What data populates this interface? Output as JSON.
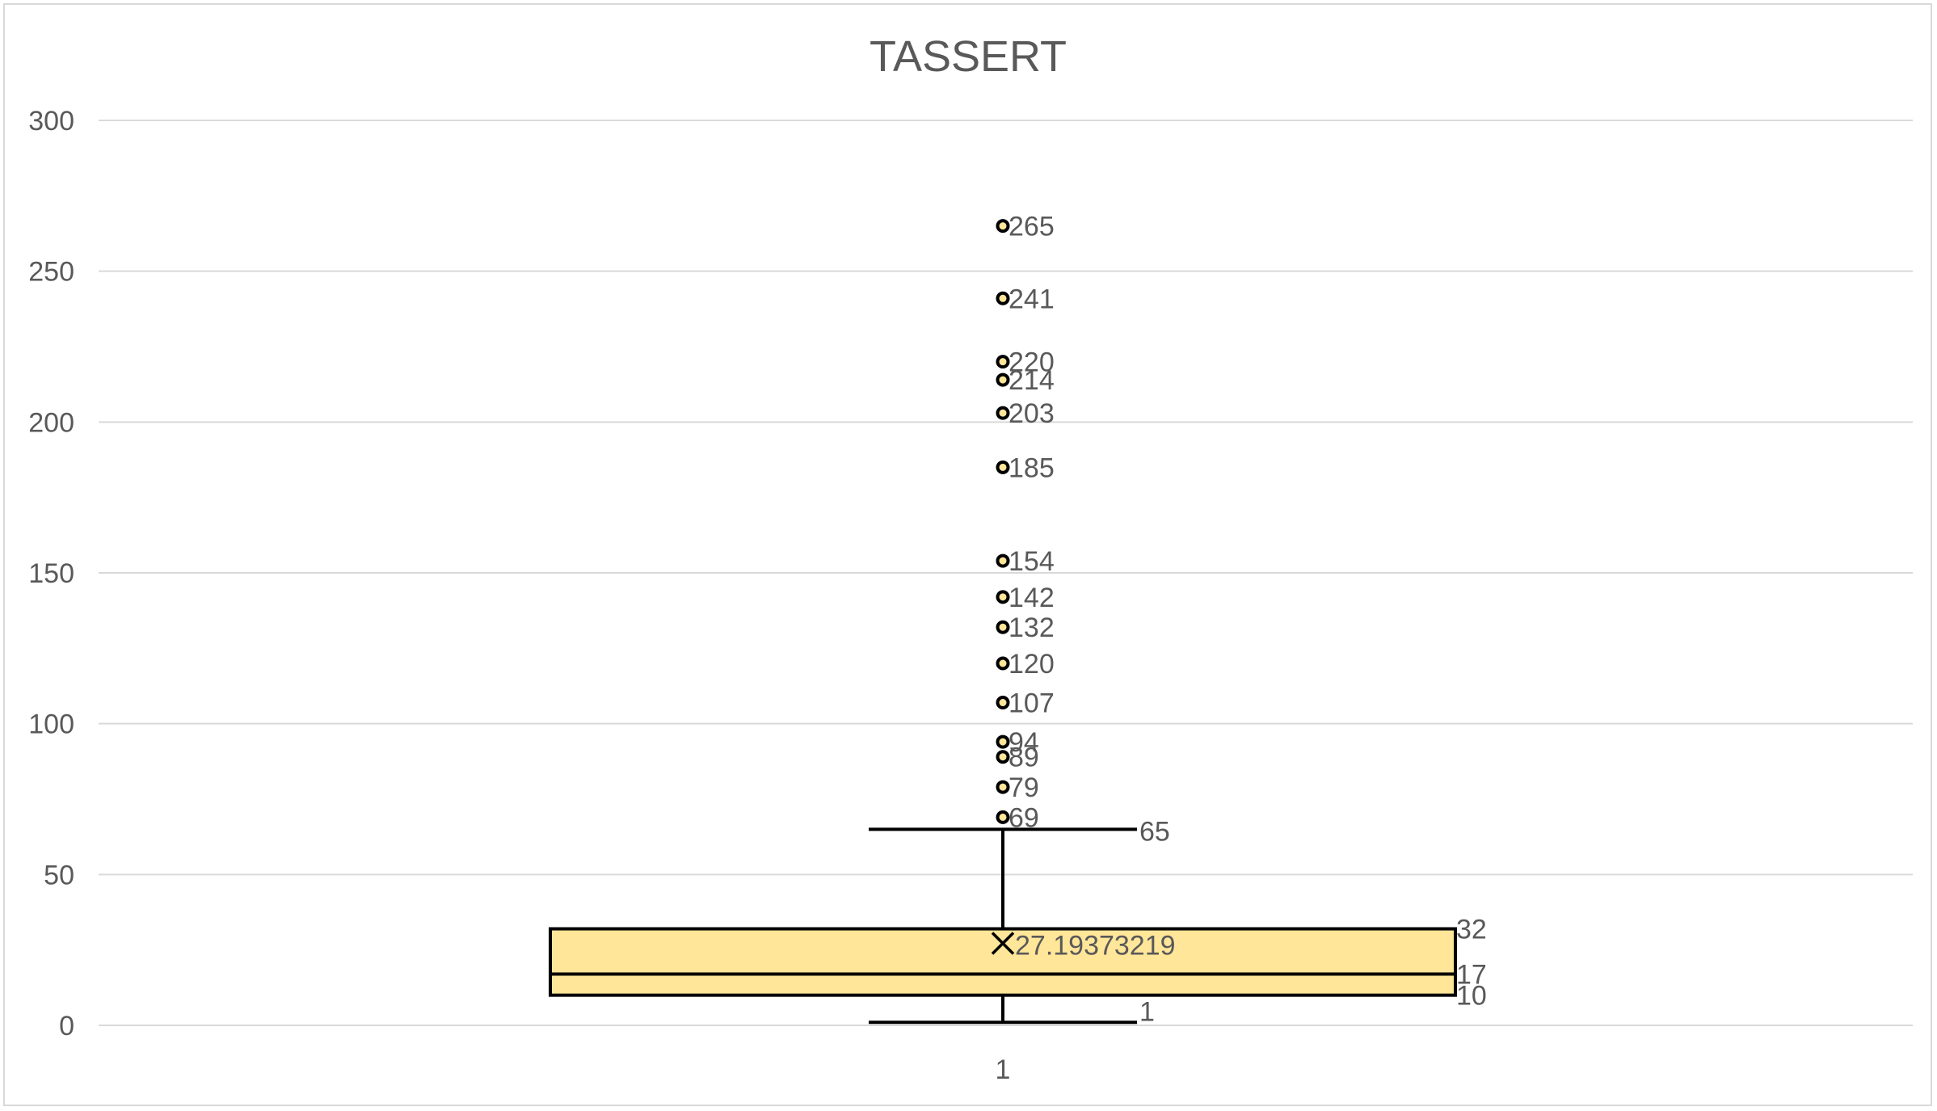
{
  "chart_data": {
    "type": "box",
    "title": "TASSERT",
    "categories": [
      "1"
    ],
    "ylim": [
      0,
      300
    ],
    "yticks": [
      0,
      50,
      100,
      150,
      200,
      250,
      300
    ],
    "ytick_labels": [
      "0",
      "50",
      "100",
      "150",
      "200",
      "250",
      "300"
    ],
    "grid": true,
    "legend": "none",
    "box": {
      "min": 1,
      "q1": 10,
      "median": 17,
      "q3": 32,
      "max": 65,
      "mean": 27.19373219,
      "min_label": "1",
      "q1_label": "10",
      "median_label": "17",
      "q3_label": "32",
      "max_label": "65",
      "mean_label": "27.19373219"
    },
    "outliers": [
      69,
      79,
      89,
      94,
      107,
      120,
      132,
      142,
      154,
      185,
      203,
      214,
      220,
      241,
      265
    ],
    "outlier_labels": [
      "69",
      "79",
      "89",
      "94",
      "107",
      "120",
      "132",
      "142",
      "154",
      "185",
      "203",
      "214",
      "220",
      "241",
      "265"
    ],
    "colors": {
      "box_fill": "#ffe699",
      "box_stroke": "#000000",
      "outlier_fill": "#ffe699",
      "grid": "#d9d9d9",
      "text": "#595959"
    }
  }
}
